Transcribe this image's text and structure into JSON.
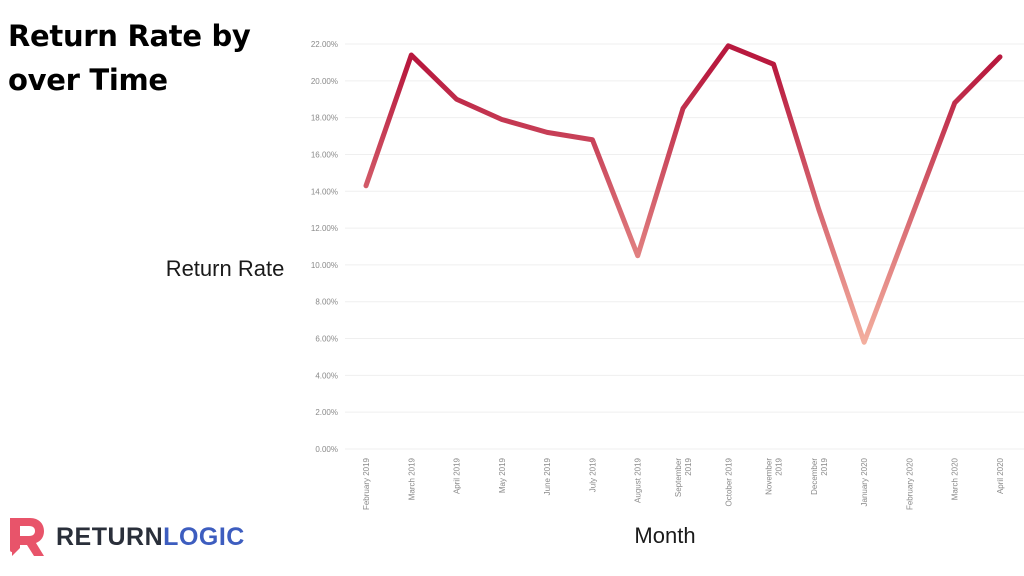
{
  "title": "Return Rate by over Time",
  "brand": {
    "part1": "RETURN",
    "part2": "LOGIC",
    "logo_color": "#e8546a",
    "part1_color": "#2a2f3a",
    "part2_color": "#3d5dbf"
  },
  "chart_data": {
    "type": "line",
    "xlabel": "Month",
    "ylabel": "Return Rate",
    "ylim": [
      0,
      0.22
    ],
    "yticks": [
      "0.00%",
      "2.00%",
      "4.00%",
      "6.00%",
      "8.00%",
      "10.00%",
      "12.00%",
      "14.00%",
      "16.00%",
      "18.00%",
      "20.00%",
      "22.00%"
    ],
    "grid": "horizontal",
    "line_color_low": "#f4b1a0",
    "line_color_high": "#b8193e",
    "categories": [
      [
        "February 2019"
      ],
      [
        "March 2019"
      ],
      [
        "April 2019"
      ],
      [
        "May 2019"
      ],
      [
        "June 2019"
      ],
      [
        "July 2019"
      ],
      [
        "August 2019"
      ],
      [
        "September",
        "2019"
      ],
      [
        "October 2019"
      ],
      [
        "November",
        "2019"
      ],
      [
        "December",
        "2019"
      ],
      [
        "January 2020"
      ],
      [
        "February 2020"
      ],
      [
        "March 2020"
      ],
      [
        "April 2020"
      ]
    ],
    "series": [
      {
        "values": [
          0.143,
          0.214,
          0.19,
          0.179,
          0.172,
          0.168,
          0.105,
          0.185,
          0.219,
          0.209,
          0.13,
          0.058,
          0.123,
          0.188,
          0.213
        ]
      }
    ]
  }
}
